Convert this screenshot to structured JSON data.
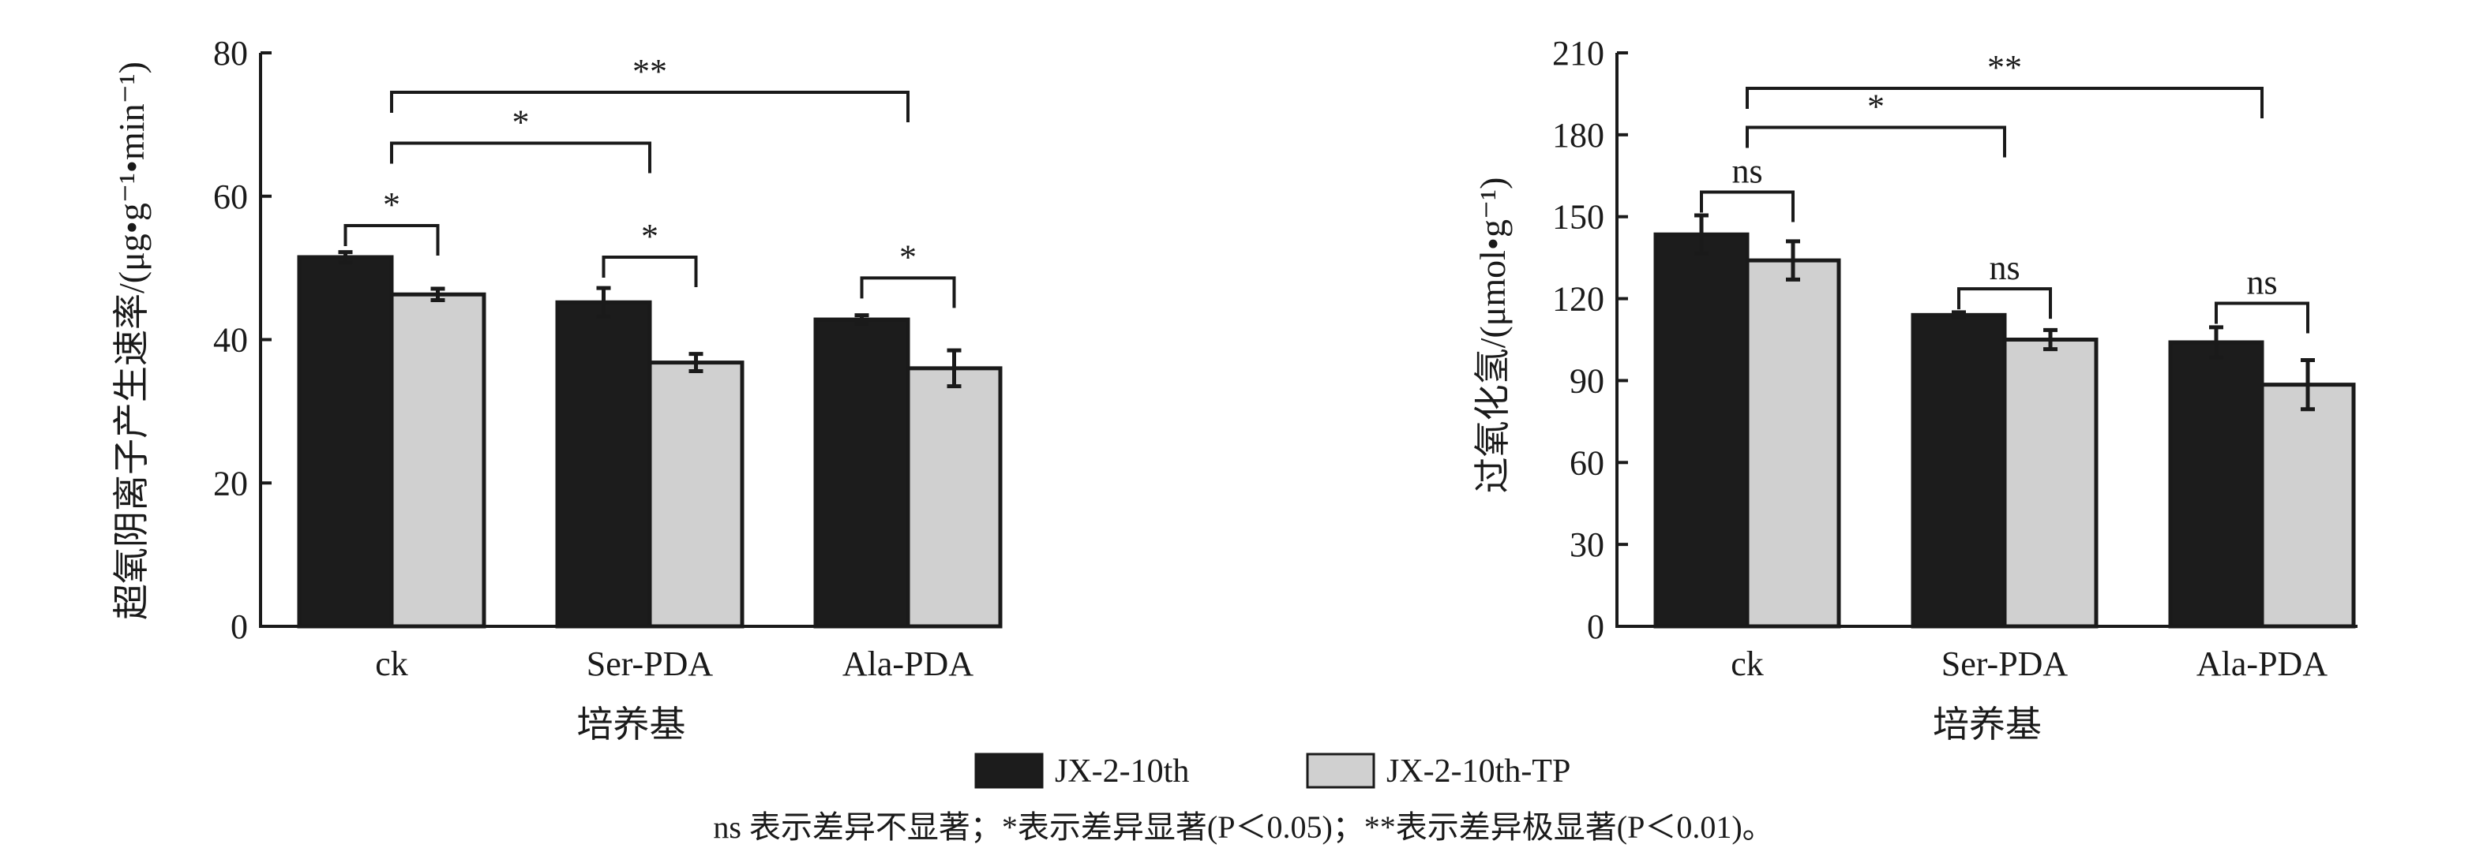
{
  "colors": {
    "series1": "#1c1c1c",
    "series2": "#d0d0d0",
    "axis": "#1a1a1a"
  },
  "chart_data": [
    {
      "type": "bar",
      "categories": [
        "ck",
        "Ser-PDA",
        "Ala-PDA"
      ],
      "series": [
        {
          "name": "JX-2-10th",
          "values": [
            51.5,
            45.2,
            42.8
          ],
          "errors": [
            0.7,
            2.0,
            0.6
          ]
        },
        {
          "name": "JX-2-10th-TP",
          "values": [
            46.3,
            36.8,
            36.0
          ],
          "errors": [
            0.8,
            1.2,
            2.5
          ]
        }
      ],
      "xlabel": "培养基",
      "ylabel": "超氧阴离子产生速率/(μg•g⁻¹•min⁻¹)",
      "ylim": [
        0,
        80
      ],
      "yticks": [
        "0",
        "20",
        "40",
        "60",
        "80"
      ],
      "significance": [
        {
          "label": "*",
          "from": [
            0,
            0
          ],
          "to": [
            0,
            1
          ],
          "level": 55.9
        },
        {
          "label": "*",
          "from": [
            1,
            0
          ],
          "to": [
            1,
            1
          ],
          "level": 51.5
        },
        {
          "label": "*",
          "from": [
            2,
            0
          ],
          "to": [
            2,
            1
          ],
          "level": 48.6
        },
        {
          "label": "*",
          "from": [
            0,
            "g"
          ],
          "to": [
            1,
            "g"
          ],
          "level": 67.4
        },
        {
          "label": "**",
          "from": [
            0,
            "g"
          ],
          "to": [
            2,
            "g"
          ],
          "level": 74.5
        }
      ]
    },
    {
      "type": "bar",
      "categories": [
        "ck",
        "Ser-PDA",
        "Ala-PDA"
      ],
      "series": [
        {
          "name": "JX-2-10th",
          "values": [
            143.5,
            114,
            104
          ],
          "errors": [
            7,
            1,
            5.5
          ]
        },
        {
          "name": "JX-2-10th-TP",
          "values": [
            134,
            105,
            88.5
          ],
          "errors": [
            7,
            3.5,
            9
          ]
        }
      ],
      "xlabel": "培养基",
      "ylabel": "过氧化氢/(μmol•g⁻¹)",
      "ylim": [
        0,
        210
      ],
      "yticks": [
        "0",
        "30",
        "60",
        "90",
        "120",
        "150",
        "180",
        "210"
      ],
      "significance": [
        {
          "label": "ns",
          "from": [
            0,
            0
          ],
          "to": [
            0,
            1
          ],
          "level": 159
        },
        {
          "label": "ns",
          "from": [
            1,
            0
          ],
          "to": [
            1,
            1
          ],
          "level": 123.6
        },
        {
          "label": "ns",
          "from": [
            2,
            0
          ],
          "to": [
            2,
            1
          ],
          "level": 118.3
        },
        {
          "label": "*",
          "from": [
            0,
            "g"
          ],
          "to": [
            1,
            "g"
          ],
          "level": 182.7
        },
        {
          "label": "**",
          "from": [
            0,
            "g"
          ],
          "to": [
            2,
            "g"
          ],
          "level": 197
        }
      ]
    }
  ],
  "legend": {
    "items": [
      "JX-2-10th",
      "JX-2-10th-TP"
    ]
  },
  "footnote": "ns 表示差异不显著；*表示差异显著(P＜0.05)；**表示差异极显著(P＜0.01)。"
}
